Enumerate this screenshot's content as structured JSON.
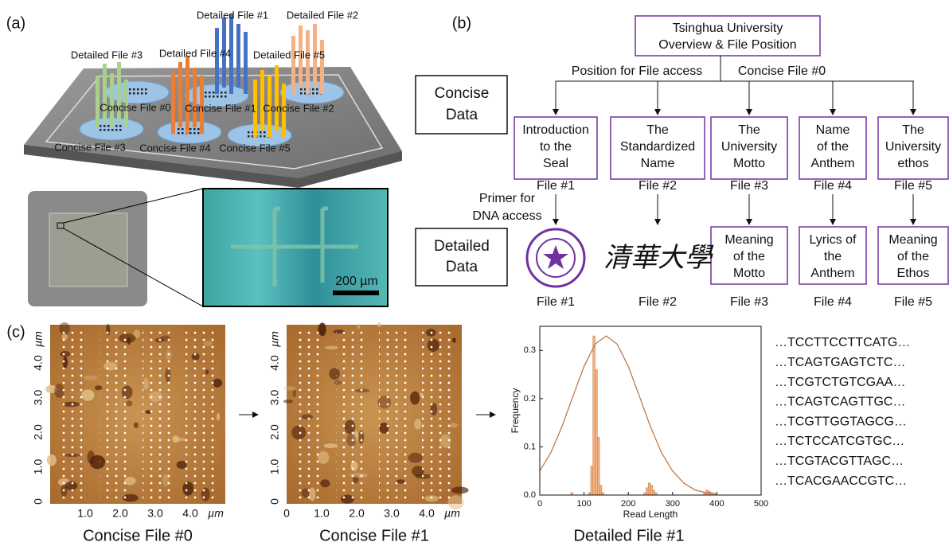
{
  "panel_a": {
    "label": "(a)",
    "detailed_files": [
      "Detailed File #1",
      "Detailed File #2",
      "Detailed File #3",
      "Detailed File #4",
      "Detailed File #5"
    ],
    "concise_files": [
      "Concise File #0",
      "Concise File #1",
      "Concise File #2",
      "Concise File #3",
      "Concise File #4",
      "Concise File #5"
    ],
    "scale_bar": "200 µm"
  },
  "panel_b": {
    "label": "(b)",
    "top_box": [
      "Tsinghua University",
      "Overview & File Position"
    ],
    "branches": [
      "Position for File access",
      "Concise File #0"
    ],
    "concise_data": [
      "Concise",
      "Data"
    ],
    "detailed_data": [
      "Detailed",
      "Data"
    ],
    "concise_boxes": [
      [
        "Introduction",
        "to the",
        "Seal"
      ],
      [
        "The",
        "Standardized",
        "Name"
      ],
      [
        "The",
        "University",
        "Motto"
      ],
      [
        "Name",
        "of the",
        "Anthem"
      ],
      [
        "The",
        "University",
        "ethos"
      ]
    ],
    "concise_files": [
      "File #1",
      "File #2",
      "File #3",
      "File #4",
      "File #5"
    ],
    "primer": [
      "Primer for",
      "DNA access"
    ],
    "calligraphy": "清華大學",
    "detailed_boxes": [
      [
        "Meaning",
        "of the",
        "Motto"
      ],
      [
        "Lyrics of",
        "the",
        "Anthem"
      ],
      [
        "Meaning",
        "of the",
        "Ethos"
      ]
    ],
    "detailed_files": [
      "File #1",
      "File #2",
      "File #3",
      "File #4",
      "File #5"
    ]
  },
  "panel_c": {
    "label": "(c)",
    "afm": [
      {
        "caption": "Concise File #0",
        "yticks": [
          "0",
          "1.0",
          "2.0",
          "3.0",
          "4.0"
        ],
        "xticks": [
          "1.0",
          "2.0",
          "3.0",
          "4.0"
        ],
        "unit": "µm"
      },
      {
        "caption": "Concise File #1",
        "yticks": [
          "0",
          "1.0",
          "2.0",
          "3.0",
          "4.0"
        ],
        "xticks": [
          "0",
          "1.0",
          "2.0",
          "3.0",
          "4.0"
        ],
        "unit": "µm"
      }
    ],
    "sequences": [
      "…TCCTTCCTTCATG…",
      "…TCAGTGAGTCTC…",
      "…TCGTCTGTCGAA…",
      "…TCAGTCAGTTGC…",
      "…TCGTTGGTAGCG…",
      "…TCTCCATCGTGC…",
      "…TCGTACGTTAGC…",
      "…TCACGAACCGTC…"
    ]
  },
  "chart_data": {
    "type": "histogram",
    "title": "Detailed File #1",
    "xlabel": "Read Length",
    "ylabel": "Frequency",
    "bins": [
      60,
      65,
      70,
      75,
      80,
      85,
      90,
      95,
      100,
      105,
      110,
      115,
      120,
      125,
      130,
      135,
      140,
      145,
      150,
      155,
      160,
      165,
      170,
      175,
      180,
      185,
      190,
      195,
      200,
      205,
      210,
      215,
      220,
      225,
      230,
      235,
      240,
      245,
      250,
      255,
      260,
      265,
      270,
      275,
      280,
      285,
      290,
      295,
      300,
      305,
      310,
      315,
      320,
      325,
      330,
      335,
      340,
      345,
      350,
      355,
      360,
      365,
      370,
      375,
      380,
      385,
      390,
      395,
      400,
      405
    ],
    "values": [
      0,
      0,
      0.005,
      0,
      0,
      0,
      0,
      0,
      0,
      0,
      0.005,
      0.06,
      0.33,
      0.26,
      0.12,
      0.02,
      0.005,
      0,
      0,
      0,
      0,
      0,
      0,
      0,
      0,
      0,
      0,
      0,
      0,
      0,
      0,
      0,
      0,
      0,
      0,
      0.005,
      0.015,
      0.025,
      0.02,
      0.01,
      0.005,
      0,
      0,
      0,
      0,
      0,
      0,
      0,
      0,
      0,
      0,
      0,
      0,
      0,
      0,
      0,
      0,
      0,
      0,
      0,
      0,
      0,
      0.005,
      0.01,
      0.008,
      0.005,
      0.003,
      0,
      0
    ],
    "color": "#f4b183",
    "fit": {
      "color": "#c07a4a",
      "x": [
        0,
        25,
        50,
        75,
        100,
        125,
        150,
        175,
        200,
        225,
        250,
        275,
        300,
        325,
        350,
        375,
        400
      ],
      "values": [
        0.05,
        0.088,
        0.142,
        0.205,
        0.267,
        0.313,
        0.33,
        0.313,
        0.267,
        0.205,
        0.142,
        0.088,
        0.05,
        0.025,
        0.011,
        0.005,
        0.002
      ]
    },
    "xlim": [
      0,
      500
    ],
    "ylim": [
      0,
      0.35
    ],
    "xticks": [
      0,
      100,
      200,
      300,
      400,
      500
    ],
    "yticks": [
      {
        "value": 0,
        "label": "0.0"
      },
      {
        "value": 0.1,
        "label": "0.1"
      },
      {
        "value": 0.2,
        "label": "0.2"
      },
      {
        "value": 0.3,
        "label": "0.3"
      }
    ]
  }
}
